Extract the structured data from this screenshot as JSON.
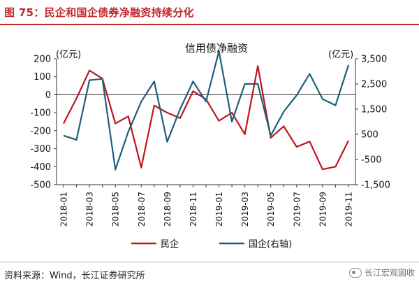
{
  "header": {
    "title": "图 75：民企和国企债券净融资持续分化"
  },
  "footer": {
    "source": "资料来源：Wind，长江证券研究所",
    "watermark": "长江宏观固收"
  },
  "colors": {
    "title": "#c0252c",
    "series_private": "#c0151f",
    "series_state": "#1f5f7a"
  },
  "chart_data": {
    "type": "line",
    "title": "信用债净融资",
    "left_axis": {
      "label": "(亿元)",
      "min": -500,
      "max": 200,
      "ticks": [
        200,
        100,
        0,
        -100,
        -200,
        -300,
        -400,
        -500
      ]
    },
    "right_axis": {
      "label": "(亿元)",
      "min": -1500,
      "max": 3500,
      "ticks": [
        "3,500",
        "2,500",
        "1,500",
        "500",
        "-500",
        "-1,500"
      ]
    },
    "categories": [
      "2018-01",
      "2018-02",
      "2018-03",
      "2018-04",
      "2018-05",
      "2018-06",
      "2018-07",
      "2018-08",
      "2018-09",
      "2018-10",
      "2018-11",
      "2018-12",
      "2019-01",
      "2019-02",
      "2019-03",
      "2019-04",
      "2019-05",
      "2019-06",
      "2019-07",
      "2019-08",
      "2019-09",
      "2019-10",
      "2019-11"
    ],
    "x_tick_labels": [
      "2018-01",
      "2018-03",
      "2018-05",
      "2018-07",
      "2018-09",
      "2018-11",
      "2019-01",
      "2019-03",
      "2019-05",
      "2019-07",
      "2019-09",
      "2019-11"
    ],
    "series": [
      {
        "name": "民企",
        "axis": "left",
        "color": "#c0151f",
        "values": [
          -160,
          -20,
          135,
          90,
          -160,
          -120,
          -405,
          -60,
          -100,
          -130,
          20,
          -25,
          -145,
          -100,
          -220,
          160,
          -240,
          -175,
          -290,
          -260,
          -415,
          -400,
          -255
        ]
      },
      {
        "name": "国企(右轴)",
        "axis": "right",
        "color": "#1f5f7a",
        "values": [
          450,
          280,
          2650,
          2700,
          -900,
          600,
          1800,
          2600,
          200,
          1500,
          2600,
          1800,
          3800,
          1000,
          2500,
          2500,
          450,
          1400,
          2050,
          2900,
          1900,
          1650,
          3250
        ]
      }
    ],
    "legend_position": "bottom"
  }
}
